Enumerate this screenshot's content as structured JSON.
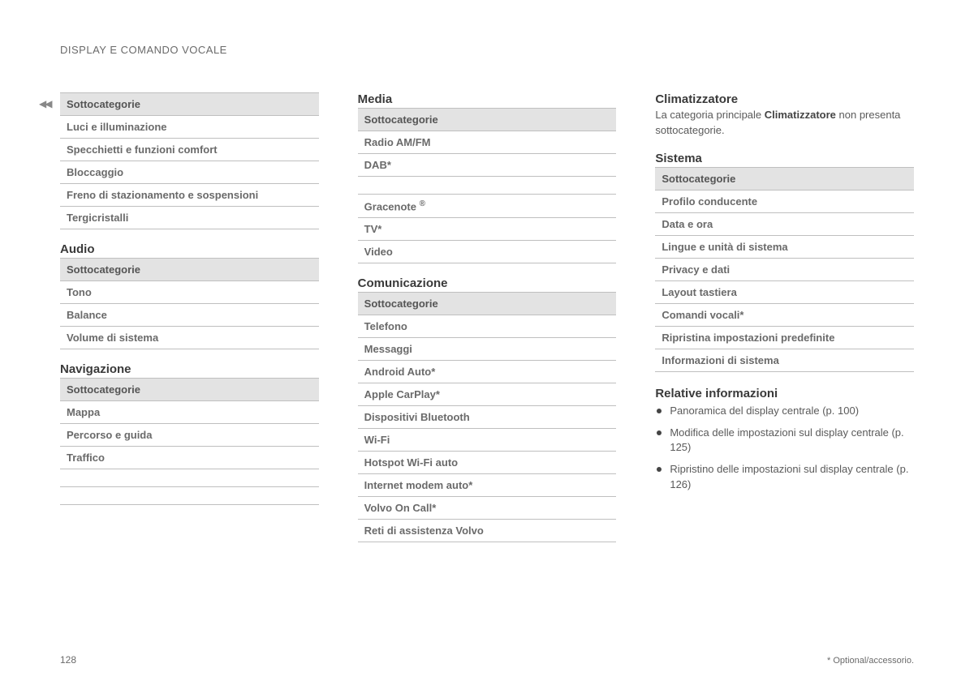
{
  "running_header": "DISPLAY E COMANDO VOCALE",
  "continuation_glyph": "◀◀",
  "page_number": "128",
  "footnote": "* Optional/accessorio.",
  "common": {
    "subcat_header": "Sottocategorie"
  },
  "col1": {
    "my_car_cont": {
      "rows": [
        "Luci e illuminazione",
        "Specchietti e funzioni comfort",
        "Bloccaggio",
        "Freno di stazionamento e sospensioni",
        "Tergicristalli"
      ]
    },
    "audio": {
      "title": "Audio",
      "rows": [
        "Tono",
        "Balance",
        "Volume di sistema"
      ]
    },
    "navigation": {
      "title": "Navigazione",
      "rows": [
        "Mappa",
        "Percorso e guida",
        "Traffico"
      ]
    }
  },
  "col2": {
    "media": {
      "title": "Media",
      "rows": [
        "Radio AM/FM",
        "DAB*",
        "",
        "Gracenote ®",
        "TV*",
        "Video"
      ]
    },
    "comm": {
      "title": "Comunicazione",
      "rows": [
        "Telefono",
        "Messaggi",
        "Android Auto*",
        "Apple CarPlay*",
        "Dispositivi Bluetooth",
        "Wi-Fi",
        "Hotspot Wi-Fi auto",
        "Internet modem auto*",
        "Volvo On Call*",
        "Reti di assistenza Volvo"
      ]
    }
  },
  "col3": {
    "climate": {
      "title": "Climatizzatore",
      "body_pre": "La categoria principale ",
      "body_bold": "Climatizzatore",
      "body_post": " non presenta sottocategorie."
    },
    "system": {
      "title": "Sistema",
      "rows": [
        "Profilo conducente",
        "Data e ora",
        "Lingue e unità di sistema",
        "Privacy e dati",
        "Layout tastiera",
        "Comandi vocali*",
        "Ripristina impostazioni predefinite",
        "Informazioni di sistema"
      ]
    },
    "related": {
      "title": "Relative informazioni",
      "items": [
        "Panoramica del display centrale (p. 100)",
        "Modifica delle impostazioni sul display centrale (p. 125)",
        "Ripristino delle impostazioni sul display centrale (p. 126)"
      ]
    }
  }
}
